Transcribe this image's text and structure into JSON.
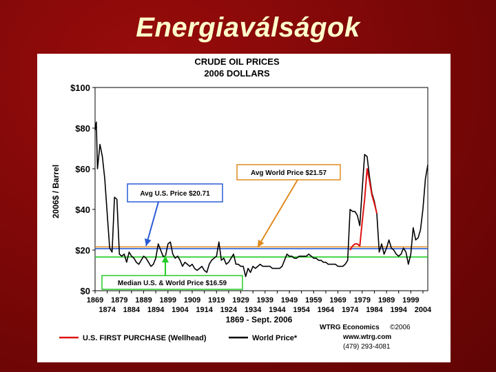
{
  "slide": {
    "title": "Energiaválságok"
  },
  "chart_data": {
    "type": "line",
    "title": "CRUDE OIL PRICES",
    "subtitle": "2006 DOLLARS",
    "ylabel": "2006$ / Barrel",
    "xlabel": "1869 - Sept. 2006",
    "xlim": [
      1869,
      2006
    ],
    "ylim": [
      0,
      100
    ],
    "y_ticks": [
      {
        "value": 0,
        "label": "$0"
      },
      {
        "value": 20,
        "label": "$20"
      },
      {
        "value": 40,
        "label": "$40"
      },
      {
        "value": 60,
        "label": "$60"
      },
      {
        "value": 80,
        "label": "$80"
      },
      {
        "value": 100,
        "label": "$100"
      }
    ],
    "x_ticks_top": [
      {
        "value": 1869,
        "label": "1869"
      },
      {
        "value": 1879,
        "label": "1879"
      },
      {
        "value": 1889,
        "label": "1889"
      },
      {
        "value": 1899,
        "label": "1899"
      },
      {
        "value": 1909,
        "label": "1909"
      },
      {
        "value": 1919,
        "label": "1919"
      },
      {
        "value": 1929,
        "label": "1929"
      },
      {
        "value": 1939,
        "label": "1939"
      },
      {
        "value": 1949,
        "label": "1949"
      },
      {
        "value": 1959,
        "label": "1959"
      },
      {
        "value": 1969,
        "label": "1969"
      },
      {
        "value": 1979,
        "label": "1979"
      },
      {
        "value": 1989,
        "label": "1989"
      },
      {
        "value": 1999,
        "label": "1999"
      }
    ],
    "x_ticks_bottom": [
      {
        "value": 1874,
        "label": "1874"
      },
      {
        "value": 1884,
        "label": "1884"
      },
      {
        "value": 1894,
        "label": "1894"
      },
      {
        "value": 1904,
        "label": "1904"
      },
      {
        "value": 1914,
        "label": "1914"
      },
      {
        "value": 1924,
        "label": "1924"
      },
      {
        "value": 1934,
        "label": "1934"
      },
      {
        "value": 1944,
        "label": "1944"
      },
      {
        "value": 1954,
        "label": "1954"
      },
      {
        "value": 1964,
        "label": "1964"
      },
      {
        "value": 1974,
        "label": "1974"
      },
      {
        "value": 1984,
        "label": "1984"
      },
      {
        "value": 1994,
        "label": "1994"
      },
      {
        "value": 2004,
        "label": "2004"
      }
    ],
    "reference_lines": [
      {
        "value": 21.57,
        "color": "#e08a1e",
        "label": "Avg  World Price  $21.57"
      },
      {
        "value": 20.71,
        "color": "#2a5bd6",
        "label": "Avg  U.S. Price  $20.71"
      },
      {
        "value": 16.59,
        "color": "#22cc22",
        "label": "Median U.S. & World Price $16.59"
      }
    ],
    "series": [
      {
        "name": "World Price*",
        "color": "#000000",
        "points": [
          [
            1869,
            79
          ],
          [
            1869.5,
            83
          ],
          [
            1870,
            60
          ],
          [
            1871,
            72
          ],
          [
            1872,
            66
          ],
          [
            1873,
            55
          ],
          [
            1874,
            38
          ],
          [
            1875,
            21
          ],
          [
            1876,
            19
          ],
          [
            1877,
            46
          ],
          [
            1878,
            45
          ],
          [
            1879,
            18
          ],
          [
            1880,
            17
          ],
          [
            1881,
            18
          ],
          [
            1882,
            14
          ],
          [
            1883,
            19
          ],
          [
            1884,
            17
          ],
          [
            1885,
            16
          ],
          [
            1886,
            14
          ],
          [
            1887,
            13
          ],
          [
            1888,
            15
          ],
          [
            1889,
            17
          ],
          [
            1890,
            16
          ],
          [
            1891,
            14
          ],
          [
            1892,
            12
          ],
          [
            1893,
            13
          ],
          [
            1894,
            16
          ],
          [
            1895,
            23
          ],
          [
            1896,
            20
          ],
          [
            1897,
            17
          ],
          [
            1898,
            17
          ],
          [
            1899,
            23
          ],
          [
            1900,
            24
          ],
          [
            1901,
            18
          ],
          [
            1902,
            16
          ],
          [
            1903,
            17
          ],
          [
            1904,
            15
          ],
          [
            1905,
            12
          ],
          [
            1906,
            14
          ],
          [
            1907,
            13
          ],
          [
            1908,
            12
          ],
          [
            1909,
            13
          ],
          [
            1910,
            11
          ],
          [
            1911,
            10
          ],
          [
            1912,
            11
          ],
          [
            1913,
            12
          ],
          [
            1914,
            10
          ],
          [
            1915,
            9
          ],
          [
            1916,
            13
          ],
          [
            1917,
            15
          ],
          [
            1918,
            16
          ],
          [
            1919,
            17
          ],
          [
            1920,
            24
          ],
          [
            1921,
            15
          ],
          [
            1922,
            16
          ],
          [
            1923,
            13
          ],
          [
            1924,
            14
          ],
          [
            1925,
            16
          ],
          [
            1926,
            18
          ],
          [
            1927,
            13
          ],
          [
            1928,
            13
          ],
          [
            1929,
            12
          ],
          [
            1930,
            12
          ],
          [
            1931,
            7
          ],
          [
            1932,
            11
          ],
          [
            1933,
            9
          ],
          [
            1934,
            12
          ],
          [
            1935,
            11
          ],
          [
            1936,
            12
          ],
          [
            1937,
            13
          ],
          [
            1938,
            12
          ],
          [
            1939,
            12
          ],
          [
            1940,
            12
          ],
          [
            1941,
            12
          ],
          [
            1942,
            11
          ],
          [
            1943,
            11
          ],
          [
            1944,
            11
          ],
          [
            1945,
            11
          ],
          [
            1946,
            12
          ],
          [
            1947,
            15
          ],
          [
            1948,
            18
          ],
          [
            1949,
            17
          ],
          [
            1950,
            17
          ],
          [
            1951,
            16
          ],
          [
            1952,
            16
          ],
          [
            1953,
            17
          ],
          [
            1954,
            17
          ],
          [
            1955,
            17
          ],
          [
            1956,
            17
          ],
          [
            1957,
            18
          ],
          [
            1958,
            17
          ],
          [
            1959,
            16
          ],
          [
            1960,
            16
          ],
          [
            1961,
            15
          ],
          [
            1962,
            15
          ],
          [
            1963,
            14
          ],
          [
            1964,
            14
          ],
          [
            1965,
            13
          ],
          [
            1966,
            13
          ],
          [
            1967,
            13
          ],
          [
            1968,
            13
          ],
          [
            1969,
            12
          ],
          [
            1970,
            12
          ],
          [
            1971,
            12
          ],
          [
            1972,
            13
          ],
          [
            1973,
            15
          ],
          [
            1974,
            40
          ],
          [
            1975,
            39
          ],
          [
            1976,
            39
          ],
          [
            1977,
            37
          ],
          [
            1978,
            32
          ],
          [
            1979,
            50
          ],
          [
            1980,
            67
          ],
          [
            1981,
            66
          ],
          [
            1982,
            56
          ],
          [
            1983,
            48
          ],
          [
            1984,
            44
          ],
          [
            1985,
            38
          ],
          [
            1986,
            19
          ],
          [
            1987,
            23
          ],
          [
            1988,
            18
          ],
          [
            1989,
            21
          ],
          [
            1990,
            25
          ],
          [
            1991,
            21
          ],
          [
            1992,
            20
          ],
          [
            1993,
            18
          ],
          [
            1994,
            17
          ],
          [
            1995,
            18
          ],
          [
            1996,
            21
          ],
          [
            1997,
            19
          ],
          [
            1998,
            13
          ],
          [
            1999,
            18
          ],
          [
            2000,
            31
          ],
          [
            2001,
            25
          ],
          [
            2002,
            26
          ],
          [
            2003,
            30
          ],
          [
            2004,
            40
          ],
          [
            2005,
            55
          ],
          [
            2006,
            62
          ]
        ]
      },
      {
        "name": "U.S. FIRST PURCHASE (Wellhead)",
        "color": "#dd1111",
        "points": [
          [
            1974,
            20
          ],
          [
            1975,
            22
          ],
          [
            1976,
            23
          ],
          [
            1977,
            23
          ],
          [
            1978,
            22
          ],
          [
            1979,
            34
          ],
          [
            1980,
            45
          ],
          [
            1981,
            60
          ],
          [
            1982,
            54
          ],
          [
            1983,
            47
          ],
          [
            1984,
            43
          ],
          [
            1985,
            38
          ]
        ]
      }
    ],
    "annotations": {
      "source": "WTRG Economics",
      "copyright": "©2006",
      "website": "www.wtrg.com",
      "phone": "(479) 293-4081"
    },
    "legend_placement": "bottom",
    "grid": false
  }
}
